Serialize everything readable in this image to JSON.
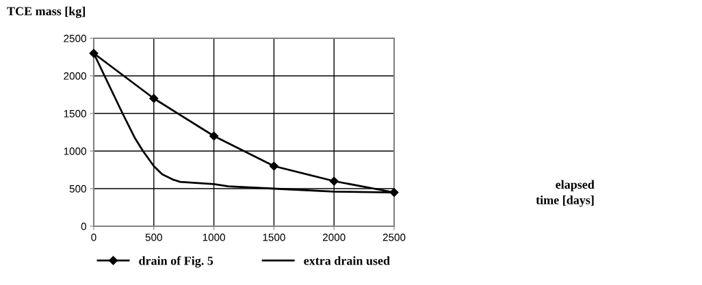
{
  "chart_data": {
    "type": "line",
    "ylabel": "TCE mass [kg]",
    "annotations": [
      "elapsed time [days]"
    ],
    "xlim": [
      0,
      2500
    ],
    "xticks": [
      0,
      500,
      1000,
      1500,
      2000,
      2500
    ],
    "ylim": [
      0,
      2500
    ],
    "yticks": [
      0,
      500,
      1000,
      1500,
      2000,
      2500
    ],
    "grid": true,
    "legend": "bottom",
    "line_style": "solid",
    "series": [
      {
        "name": "drain of Fig. 5",
        "color": "#000000",
        "marker": "diamond",
        "x": [
          0,
          500,
          1000,
          1500,
          2000,
          2500
        ],
        "values": [
          2300,
          1700,
          1200,
          800,
          600,
          450
        ]
      },
      {
        "name": "extra drain used",
        "color": "#000000",
        "marker": "none",
        "x": [
          0,
          240,
          340,
          410,
          500,
          570,
          660,
          720,
          1000,
          1120,
          1500,
          2000,
          2500
        ],
        "values": [
          2300,
          1500,
          1180,
          1000,
          800,
          690,
          620,
          590,
          560,
          530,
          500,
          460,
          450
        ]
      }
    ]
  }
}
